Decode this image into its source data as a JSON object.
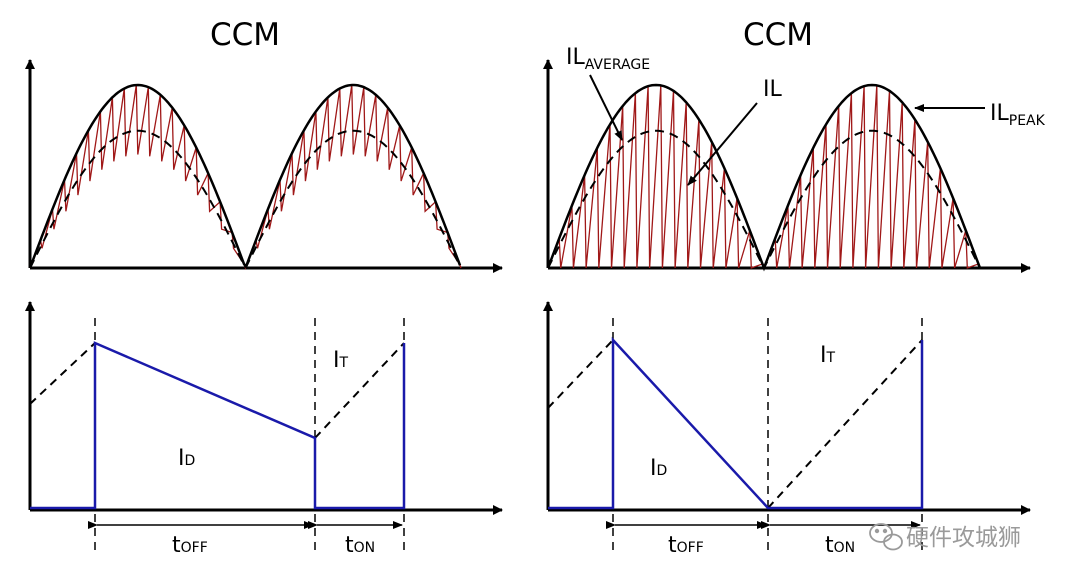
{
  "titles": {
    "left": "CCM",
    "right": "CCM"
  },
  "labels": {
    "il_average_main": "IL",
    "il_average_sub": "AVERAGE",
    "il_main": "IL",
    "il_peak_main": "IL",
    "il_peak_sub": "PEAK",
    "it_left_main": "I",
    "it_left_sub": "T",
    "id_left_main": "I",
    "id_left_sub": "D",
    "it_right_main": "I",
    "it_right_sub": "T",
    "id_right_main": "I",
    "id_right_sub": "D",
    "toff_left_main": "t",
    "toff_left_sub": "OFF",
    "ton_left_main": "t",
    "ton_left_sub": "ON",
    "toff_right_main": "t",
    "toff_right_sub": "OFF",
    "ton_right_main": "t",
    "ton_right_sub": "ON"
  },
  "watermark": {
    "text": "硬件攻城狮",
    "icon": "wechat-icon"
  },
  "colors": {
    "inductor_ripple": "#a01818",
    "diode_current": "#1a1aaa",
    "axis": "#000000",
    "watermark": "#9a9a9a"
  }
}
